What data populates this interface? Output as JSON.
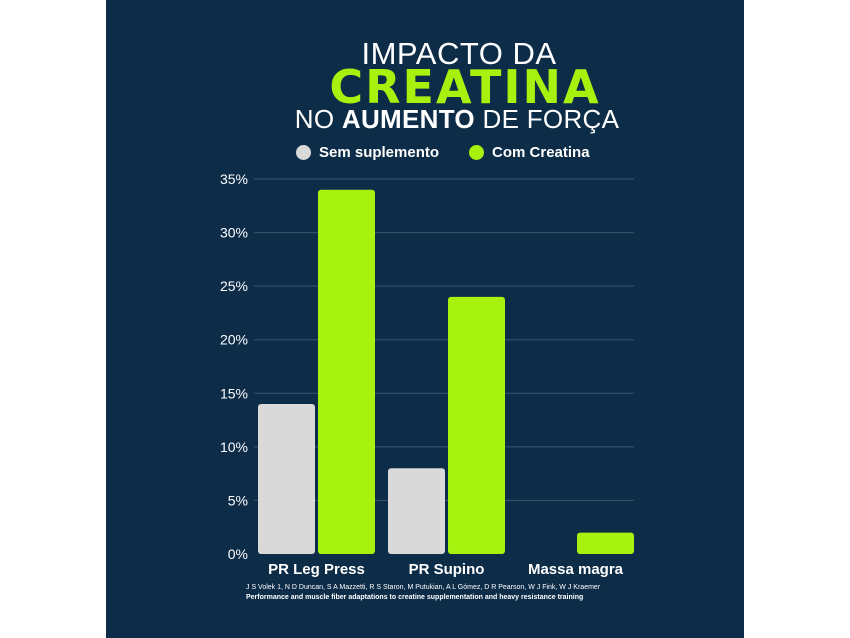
{
  "header": {
    "title_line1": "IMPACTO DA",
    "title_line2": "CREATINA",
    "title_line3_prefix": "NO",
    "title_line3_bold": "AUMENTO",
    "title_line3_suffix": "DE FORÇA"
  },
  "legend": {
    "items": [
      {
        "label": "Sem suplemento",
        "color": "#d9d9d9"
      },
      {
        "label": "Com Creatina",
        "color": "#a6f20e"
      }
    ]
  },
  "chart_data": {
    "type": "bar",
    "categories": [
      "PR Leg Press",
      "PR Supino",
      "Massa magra"
    ],
    "series": [
      {
        "name": "Sem suplemento",
        "values": [
          14,
          8,
          0
        ],
        "color": "#d9d9d9"
      },
      {
        "name": "Com Creatina",
        "values": [
          34,
          24,
          2
        ],
        "color": "#a6f20e"
      }
    ],
    "yticks": [
      "0%",
      "5%",
      "10%",
      "15%",
      "20%",
      "25%",
      "30%",
      "35%"
    ],
    "ytick_values": [
      0,
      5,
      10,
      15,
      20,
      25,
      30,
      35
    ],
    "ylim": [
      0,
      35
    ],
    "grid": true,
    "legend_position": "top"
  },
  "references": {
    "authors": "J S Volek 1, N D Duncan, S A Mazzetti, R S Staron, M Putukian, A L Gómez, D R Pearson, W J Fink, W J Kraemer",
    "title": "Performance and muscle fiber adaptations to creatine supplementation and heavy resistance training"
  },
  "colors": {
    "background": "#0d2c48",
    "accent": "#a6f20e",
    "grid": "#3a5570",
    "text": "#ffffff"
  }
}
